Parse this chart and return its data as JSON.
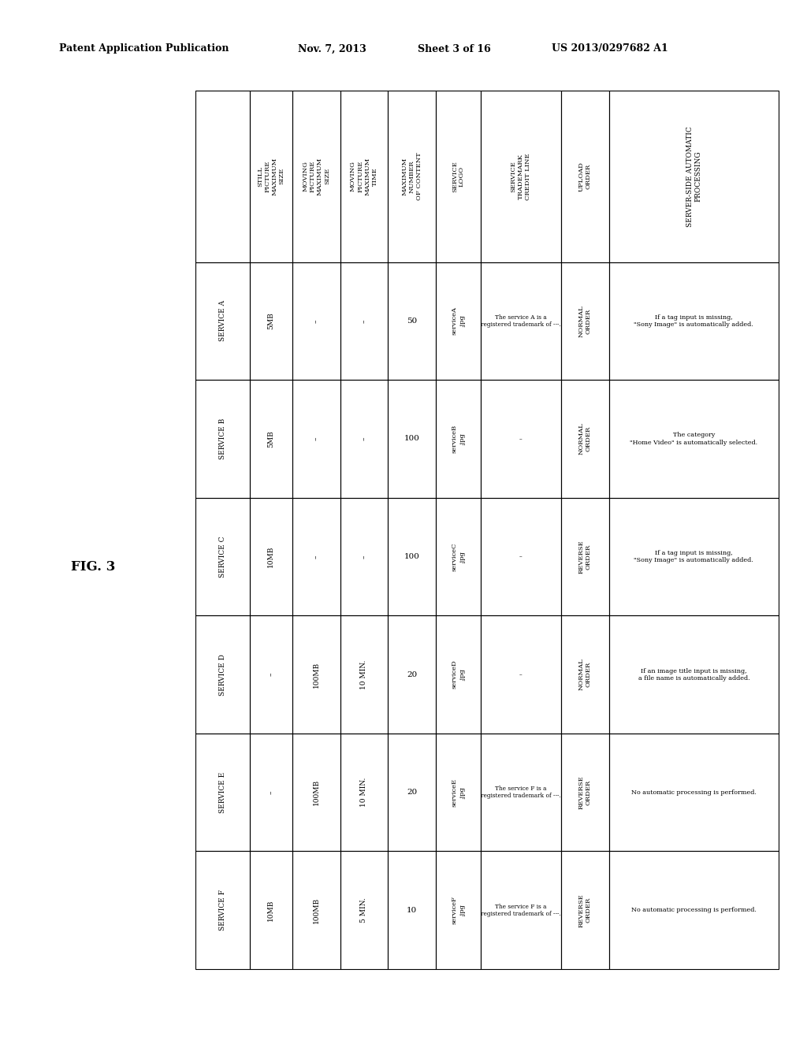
{
  "header_left": "Patent Application Publication",
  "header_mid1": "Nov. 7, 2013",
  "header_mid2": "Sheet 3 of 16",
  "header_right": "US 2013/0297682 A1",
  "fig_label": "FIG. 3",
  "col_headers": [
    "",
    "STILL\nPICTURE\nMAXIMUM\nSIZE",
    "MOVING\nPICTURE\nMAXIMUM\nSIZE",
    "MOVING\nPICTURE\nMAXIMUM\nTIME",
    "MAXIMUM\nNUMBER\nOF CONTENT",
    "SERVICE\nLOGO",
    "SERVICE\nTRADEMARK\nCREDIT LINE",
    "UPLOAD\nORDER",
    "SERVER-SIDE AUTOMATIC\nPROCESSING"
  ],
  "services": [
    "SERVICE A",
    "SERVICE B",
    "SERVICE C",
    "SERVICE D",
    "SERVICE E",
    "SERVICE F"
  ],
  "still_pic": [
    "5MB",
    "5MB",
    "10MB",
    "–",
    "–",
    "10MB"
  ],
  "moving_pic_size": [
    "–",
    "–",
    "–",
    "100MB",
    "100MB",
    "100MB"
  ],
  "moving_pic_time": [
    "–",
    "–",
    "–",
    "10 MIN.",
    "10 MIN.",
    "5 MIN."
  ],
  "max_number": [
    "50",
    "100",
    "100",
    "20",
    "20",
    "10"
  ],
  "service_logo": [
    "serviceA\n.jpg",
    "serviceB\n.jpg",
    "serviceC\n.jpg",
    "serviceD\n.jpg",
    "serviceE\n.jpg",
    "serviceF\n.jpg"
  ],
  "trademark": [
    "The service A is a\nregistered trademark of ---.",
    "–",
    "–",
    "–",
    "The service F is a\nregistered trademark of ---.",
    "The service F is a\nregistered trademark of ---."
  ],
  "upload_order": [
    "NORMAL\nORDER",
    "NORMAL\nORDER",
    "REVERSE\nORDER",
    "NORMAL\nORDER",
    "REVERSE\nORDER",
    "REVERSE\nORDER"
  ],
  "server_side": [
    "If a tag input is missing,\n\"Sony Image\" is automatically added.",
    "The category\n\"Home Video\" is automatically selected.",
    "If a tag input is missing,\n\"Sony Image\" is automatically added.",
    "If an image title input is missing,\na file name is automatically added.",
    "No automatic processing is performed.",
    "No automatic processing is performed."
  ],
  "bg_color": "#ffffff",
  "line_color": "#000000",
  "text_color": "#000000"
}
